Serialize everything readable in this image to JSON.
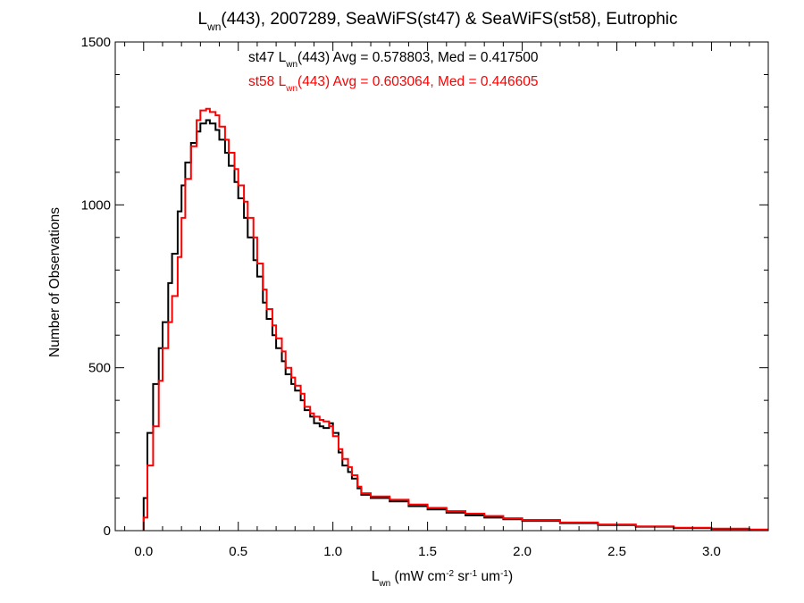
{
  "chart_data": {
    "type": "line",
    "title": {
      "pre": "L",
      "sub": "wn",
      "post": "(443), 2007289, SeaWiFS(st47) & SeaWiFS(st58), Eutrophic"
    },
    "xlabel": {
      "pre": "L",
      "sub": "wn",
      "post": " (mW cm",
      "sup1": "-2",
      "mid": " sr",
      "sup2": "-1",
      "end": " um",
      "sup3": "-1",
      "close": ")"
    },
    "ylabel": "Number of Observations",
    "xlim": [
      -0.15,
      3.3
    ],
    "ylim": [
      0,
      1500
    ],
    "xticks": [
      0.0,
      0.5,
      1.0,
      1.5,
      2.0,
      2.5,
      3.0
    ],
    "xtick_labels": [
      "0.0",
      "0.5",
      "1.0",
      "1.5",
      "2.0",
      "2.5",
      "3.0"
    ],
    "yticks": [
      0,
      500,
      1000,
      1500
    ],
    "ytick_labels": [
      "0",
      "500",
      "1000",
      "1500"
    ],
    "grid": false,
    "series": [
      {
        "name": "st47",
        "color": "#000000",
        "points": [
          [
            0.0,
            0
          ],
          [
            0.0,
            100
          ],
          [
            0.02,
            300
          ],
          [
            0.05,
            450
          ],
          [
            0.08,
            560
          ],
          [
            0.1,
            640
          ],
          [
            0.13,
            760
          ],
          [
            0.15,
            850
          ],
          [
            0.18,
            980
          ],
          [
            0.2,
            1060
          ],
          [
            0.22,
            1130
          ],
          [
            0.25,
            1190
          ],
          [
            0.28,
            1225
          ],
          [
            0.3,
            1250
          ],
          [
            0.33,
            1260
          ],
          [
            0.35,
            1250
          ],
          [
            0.38,
            1230
          ],
          [
            0.4,
            1200
          ],
          [
            0.43,
            1160
          ],
          [
            0.45,
            1120
          ],
          [
            0.48,
            1070
          ],
          [
            0.5,
            1020
          ],
          [
            0.53,
            960
          ],
          [
            0.55,
            900
          ],
          [
            0.58,
            830
          ],
          [
            0.6,
            780
          ],
          [
            0.63,
            700
          ],
          [
            0.65,
            650
          ],
          [
            0.68,
            600
          ],
          [
            0.7,
            560
          ],
          [
            0.73,
            520
          ],
          [
            0.75,
            480
          ],
          [
            0.78,
            450
          ],
          [
            0.8,
            430
          ],
          [
            0.83,
            400
          ],
          [
            0.85,
            370
          ],
          [
            0.88,
            350
          ],
          [
            0.9,
            330
          ],
          [
            0.93,
            320
          ],
          [
            0.95,
            315
          ],
          [
            0.98,
            330
          ],
          [
            1.0,
            300
          ],
          [
            1.03,
            240
          ],
          [
            1.05,
            200
          ],
          [
            1.08,
            180
          ],
          [
            1.1,
            160
          ],
          [
            1.13,
            130
          ],
          [
            1.15,
            110
          ],
          [
            1.2,
            100
          ],
          [
            1.3,
            90
          ],
          [
            1.4,
            75
          ],
          [
            1.5,
            65
          ],
          [
            1.6,
            55
          ],
          [
            1.7,
            47
          ],
          [
            1.8,
            40
          ],
          [
            1.9,
            35
          ],
          [
            2.0,
            30
          ],
          [
            2.2,
            23
          ],
          [
            2.4,
            17
          ],
          [
            2.6,
            12
          ],
          [
            2.8,
            8
          ],
          [
            3.0,
            5
          ],
          [
            3.2,
            3
          ],
          [
            3.3,
            3
          ]
        ]
      },
      {
        "name": "st58",
        "color": "#ff0000",
        "points": [
          [
            0.0,
            0
          ],
          [
            0.0,
            40
          ],
          [
            0.02,
            200
          ],
          [
            0.05,
            320
          ],
          [
            0.08,
            460
          ],
          [
            0.1,
            560
          ],
          [
            0.13,
            640
          ],
          [
            0.15,
            720
          ],
          [
            0.18,
            840
          ],
          [
            0.2,
            960
          ],
          [
            0.22,
            1080
          ],
          [
            0.25,
            1180
          ],
          [
            0.28,
            1260
          ],
          [
            0.3,
            1290
          ],
          [
            0.33,
            1295
          ],
          [
            0.35,
            1285
          ],
          [
            0.38,
            1275
          ],
          [
            0.4,
            1240
          ],
          [
            0.43,
            1200
          ],
          [
            0.45,
            1160
          ],
          [
            0.48,
            1110
          ],
          [
            0.5,
            1060
          ],
          [
            0.53,
            1010
          ],
          [
            0.55,
            960
          ],
          [
            0.58,
            900
          ],
          [
            0.6,
            820
          ],
          [
            0.63,
            740
          ],
          [
            0.65,
            680
          ],
          [
            0.68,
            630
          ],
          [
            0.7,
            590
          ],
          [
            0.73,
            550
          ],
          [
            0.75,
            500
          ],
          [
            0.78,
            470
          ],
          [
            0.8,
            445
          ],
          [
            0.83,
            420
          ],
          [
            0.85,
            380
          ],
          [
            0.88,
            360
          ],
          [
            0.9,
            350
          ],
          [
            0.93,
            340
          ],
          [
            0.95,
            335
          ],
          [
            0.98,
            320
          ],
          [
            1.0,
            290
          ],
          [
            1.03,
            250
          ],
          [
            1.05,
            220
          ],
          [
            1.08,
            195
          ],
          [
            1.1,
            170
          ],
          [
            1.13,
            135
          ],
          [
            1.15,
            115
          ],
          [
            1.2,
            105
          ],
          [
            1.3,
            95
          ],
          [
            1.4,
            80
          ],
          [
            1.5,
            70
          ],
          [
            1.6,
            60
          ],
          [
            1.7,
            52
          ],
          [
            1.8,
            45
          ],
          [
            1.9,
            38
          ],
          [
            2.0,
            33
          ],
          [
            2.2,
            25
          ],
          [
            2.4,
            19
          ],
          [
            2.6,
            13
          ],
          [
            2.8,
            9
          ],
          [
            3.0,
            6
          ],
          [
            3.2,
            3
          ],
          [
            3.3,
            3
          ]
        ]
      }
    ],
    "annotations": [
      {
        "series": "st47",
        "color": "#000000",
        "pre": "st47 L",
        "sub": "wn",
        "post": "(443) Avg = 0.578803, Med = 0.417500"
      },
      {
        "series": "st58",
        "color": "#ff0000",
        "pre": "st58 L",
        "sub": "wn",
        "post": "(443) Avg = 0.603064, Med = 0.446605"
      }
    ]
  }
}
